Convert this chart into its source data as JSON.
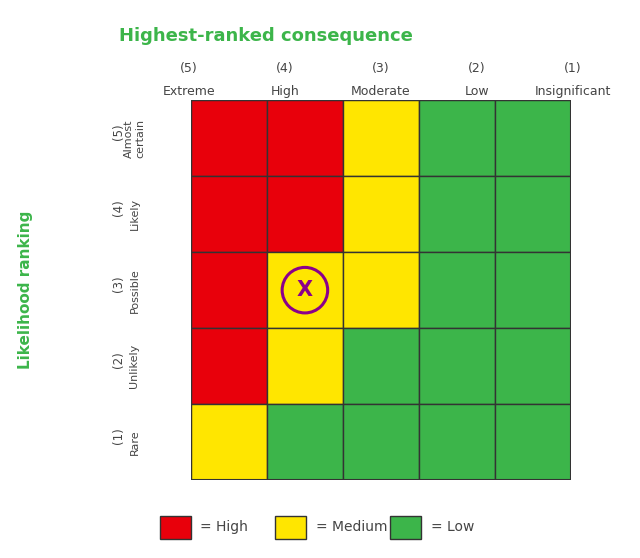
{
  "title": "Highest-ranked consequence",
  "ylabel": "Likelihood ranking",
  "col_labels_top": [
    "(5)",
    "(4)",
    "(3)",
    "(2)",
    "(1)"
  ],
  "col_labels_bottom": [
    "Extreme",
    "High",
    "Moderate",
    "Low",
    "Insignificant"
  ],
  "row_labels_top": [
    "(5)",
    "(4)",
    "(3)",
    "(2)",
    "(1)"
  ],
  "row_labels_bottom": [
    "Almost\ncertain",
    "Likely",
    "Possible",
    "Unlikely",
    "Rare"
  ],
  "colors": {
    "red": "#E8000B",
    "yellow": "#FFE600",
    "green": "#3CB54A",
    "title": "#3CB54A",
    "border": "#333333",
    "marker": "#8B008B",
    "text_dark": "#444444",
    "label_green": "#3CB54A"
  },
  "grid": [
    [
      "red",
      "red",
      "yellow",
      "green",
      "green"
    ],
    [
      "red",
      "red",
      "yellow",
      "green",
      "green"
    ],
    [
      "red",
      "yellow",
      "yellow",
      "green",
      "green"
    ],
    [
      "red",
      "yellow",
      "green",
      "green",
      "green"
    ],
    [
      "yellow",
      "green",
      "green",
      "green",
      "green"
    ]
  ],
  "marker": {
    "row": 2,
    "col": 1,
    "label": "X"
  },
  "legend_items": [
    {
      "color": "#E8000B",
      "label": "= High"
    },
    {
      "color": "#FFE600",
      "label": "= Medium"
    },
    {
      "color": "#3CB54A",
      "label": "= Low"
    }
  ],
  "figsize": [
    6.4,
    5.58
  ],
  "dpi": 100
}
